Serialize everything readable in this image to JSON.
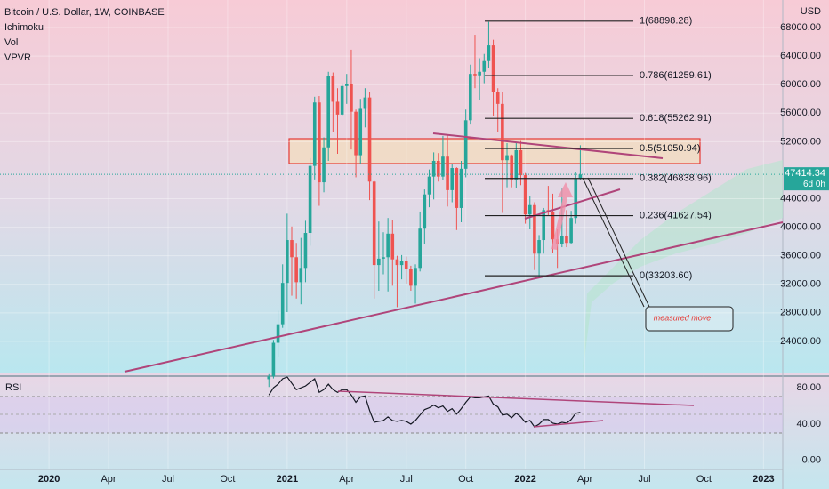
{
  "chart_data": {
    "type": "candlestick",
    "title": "Bitcoin / U.S. Dollar, 1W, COINBASE",
    "indicators": [
      "Ichimoku",
      "Vol",
      "VPVR"
    ],
    "currency": "USD",
    "annotation": "measured move",
    "up_color": "#26a69a",
    "down_color": "#ef5350",
    "xlim": [
      -10.7,
      160.2
    ],
    "xticks": [
      {
        "value": 0,
        "label": "2020"
      },
      {
        "value": 13,
        "label": "Apr"
      },
      {
        "value": 26,
        "label": "Jul"
      },
      {
        "value": 39,
        "label": "Oct"
      },
      {
        "value": 52,
        "label": "2021"
      },
      {
        "value": 65,
        "label": "Apr"
      },
      {
        "value": 78,
        "label": "Jul"
      },
      {
        "value": 91,
        "label": "Oct"
      },
      {
        "value": 104,
        "label": "2022"
      },
      {
        "value": 117,
        "label": "Apr"
      },
      {
        "value": 130,
        "label": "Jul"
      },
      {
        "value": 143,
        "label": "Oct"
      },
      {
        "value": 156,
        "label": "2023"
      }
    ],
    "ylim": [
      19750,
      71870
    ],
    "yticks": [
      {
        "value": 24000,
        "label": "24000.00"
      },
      {
        "value": 28000,
        "label": "28000.00"
      },
      {
        "value": 32000,
        "label": "32000.00"
      },
      {
        "value": 36000,
        "label": "36000.00"
      },
      {
        "value": 40000,
        "label": "40000.00"
      },
      {
        "value": 44000,
        "label": "44000.00"
      },
      {
        "value": 52000,
        "label": "52000.00"
      },
      {
        "value": 56000,
        "label": "56000.00"
      },
      {
        "value": 60000,
        "label": "60000.00"
      },
      {
        "value": 64000,
        "label": "64000.00"
      },
      {
        "value": 68000,
        "label": "68000.00"
      }
    ],
    "x": [
      48,
      49,
      50,
      51,
      52,
      53,
      54,
      55,
      56,
      57,
      58,
      59,
      60,
      61,
      62,
      63,
      64,
      65,
      66,
      67,
      68,
      69,
      70,
      71,
      72,
      73,
      74,
      75,
      76,
      77,
      78,
      79,
      80,
      81,
      82,
      83,
      84,
      85,
      86,
      87,
      88,
      89,
      90,
      91,
      92,
      93,
      94,
      95,
      96,
      97,
      98,
      99,
      100,
      101,
      102,
      103,
      104,
      105,
      106,
      107,
      108,
      109,
      110,
      111,
      112,
      113,
      114,
      115,
      116
    ],
    "open": [
      18700,
      19100,
      23800,
      26400,
      32200,
      38200,
      35800,
      32300,
      34300,
      39200,
      48600,
      57500,
      46300,
      51200,
      61200,
      57600,
      55800,
      59800,
      60100,
      56200,
      50100,
      56600,
      58200,
      46400,
      34700,
      35600,
      35800,
      39100,
      35500,
      34700,
      35300,
      34200,
      31800,
      34300,
      39800,
      44600,
      47100,
      49300,
      47100,
      49900,
      45200,
      48300,
      42700,
      48200,
      55000,
      61500,
      61300,
      61800,
      63300,
      65500,
      59000,
      57300,
      49400,
      50100,
      46700,
      50800,
      47300,
      41800,
      43100,
      36300,
      38200,
      42400,
      42200,
      38300,
      37700,
      38800,
      37800,
      41300,
      46800
    ],
    "high": [
      19400,
      24200,
      28300,
      34800,
      41900,
      40100,
      37800,
      38500,
      40900,
      49700,
      58300,
      58400,
      52600,
      61800,
      61700,
      59500,
      60200,
      61500,
      64900,
      56500,
      58000,
      59500,
      59000,
      46500,
      40800,
      39300,
      41300,
      41000,
      36000,
      36100,
      35900,
      34600,
      34800,
      42200,
      45300,
      48100,
      50500,
      50400,
      52800,
      52900,
      48800,
      48400,
      49300,
      56500,
      62800,
      67000,
      63700,
      64300,
      68800,
      66300,
      59500,
      59000,
      51800,
      50200,
      51900,
      52100,
      47600,
      44400,
      43500,
      38900,
      42700,
      45800,
      44700,
      39700,
      45400,
      42400,
      42300,
      47700,
      51500
    ],
    "low": [
      17600,
      18800,
      21800,
      25900,
      28100,
      30400,
      30000,
      29200,
      32300,
      37400,
      46700,
      43000,
      44900,
      49300,
      53300,
      50300,
      55600,
      57300,
      50900,
      47000,
      48800,
      54000,
      43800,
      30000,
      31100,
      33400,
      31000,
      31800,
      28800,
      32700,
      32100,
      31100,
      29300,
      33800,
      37600,
      42800,
      43900,
      46400,
      46600,
      42900,
      43500,
      39600,
      40700,
      47000,
      54400,
      59500,
      57900,
      60200,
      62300,
      55600,
      53300,
      42000,
      45600,
      45600,
      45500,
      45900,
      40500,
      39700,
      34000,
      32900,
      36300,
      41700,
      36400,
      34300,
      37200,
      37200,
      37600,
      40500,
      46600
    ],
    "close": [
      19100,
      23800,
      26400,
      32200,
      38200,
      35800,
      32300,
      34300,
      39200,
      48600,
      57500,
      46300,
      51200,
      61200,
      57600,
      55800,
      59800,
      60100,
      56200,
      50100,
      56600,
      58200,
      46400,
      34700,
      35600,
      35800,
      39100,
      35500,
      34700,
      35300,
      34200,
      31800,
      34300,
      39800,
      44600,
      47100,
      49300,
      47100,
      49900,
      45200,
      48300,
      42700,
      48200,
      55000,
      61500,
      61300,
      61800,
      63300,
      65500,
      59000,
      57300,
      49400,
      50100,
      46700,
      50800,
      47300,
      41800,
      43100,
      36300,
      38200,
      42400,
      42200,
      38300,
      37700,
      38800,
      37800,
      41300,
      46800,
      47400
    ],
    "fib_levels": [
      {
        "value": 68898.28,
        "label": "1(68898.28)"
      },
      {
        "value": 61259.61,
        "label": "0.786(61259.61)"
      },
      {
        "value": 55262.91,
        "label": "0.618(55262.91)"
      },
      {
        "value": 51050.94,
        "label": "0.5(51050.94)"
      },
      {
        "value": 46838.96,
        "label": "0.382(46838.96)"
      },
      {
        "value": 41627.54,
        "label": "0.236(41627.54)"
      },
      {
        "value": 33203.6,
        "label": "0(33203.60)"
      }
    ],
    "price_tag": {
      "value": 47414.34,
      "countdown": "6d 0h"
    },
    "rsi": {
      "title": "RSI",
      "color": "#131722",
      "ylim": [
        -10,
        89
      ],
      "yticks": [
        {
          "value": 80,
          "label": "80.00"
        },
        {
          "value": 40,
          "label": "40.00"
        },
        {
          "value": 0,
          "label": "0.00"
        }
      ],
      "values": [
        72,
        80,
        84,
        90,
        92,
        85,
        78,
        80,
        82,
        86,
        90,
        75,
        78,
        84,
        78,
        75,
        78,
        78,
        72,
        64,
        70,
        71,
        55,
        42,
        43,
        44,
        48,
        44,
        43,
        44,
        43,
        40,
        44,
        50,
        56,
        58,
        61,
        58,
        60,
        54,
        57,
        51,
        57,
        64,
        70,
        69,
        69,
        70,
        71,
        62,
        59,
        50,
        51,
        47,
        52,
        48,
        42,
        44,
        37,
        40,
        45,
        45,
        41,
        40,
        42,
        41,
        45,
        52,
        53
      ]
    }
  }
}
